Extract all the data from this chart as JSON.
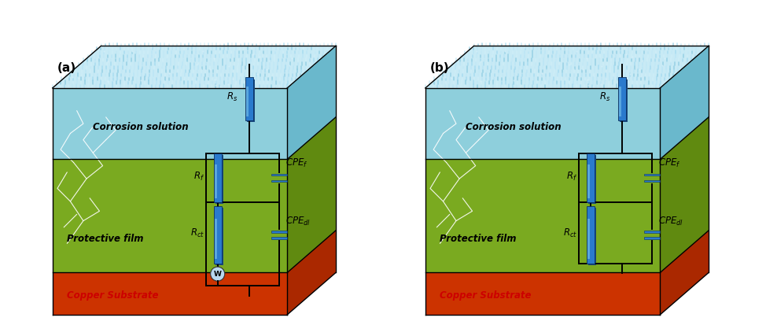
{
  "fig_width": 9.74,
  "fig_height": 4.13,
  "dpi": 100,
  "bg_color": "#ffffff",
  "panel_a": {
    "label": "(a)",
    "has_warburg": true,
    "circuit_labels": {
      "Rs": "$R_s$",
      "Rf": "$R_f$",
      "Rct": "$R_{ct}$",
      "CPEf": "$CPE_f$",
      "CPEdl": "$CPE_{dl}$",
      "W": "W"
    }
  },
  "panel_b": {
    "label": "(b)",
    "has_warburg": false,
    "circuit_labels": {
      "Rs": "$R_s$",
      "Rf": "$R_f$",
      "Rct": "$R_{ct}$",
      "CPEf": "$CPE_f$",
      "CPEdl": "$CPE_{dl}$"
    }
  },
  "sol_top_color": "#c8eaf5",
  "sol_front_color": "#8ecfdc",
  "sol_right_color": "#6ab8cc",
  "film_top_color": "#9dc43a",
  "film_front_color": "#7aaa20",
  "film_right_color": "#608a10",
  "sub_top_color": "#b85000",
  "sub_front_color": "#cc3300",
  "sub_right_color": "#aa2800",
  "resistor_color": "#2a7acd",
  "resistor_shadow": "#1a4a80",
  "resistor_highlight": "#80ccee",
  "cpe_color": "#2a7acd",
  "line_color": "#000000",
  "line_width": 1.4,
  "crack_color": "#ffffff",
  "text_solution": "#000000",
  "text_film": "#000000",
  "text_substrate": "#cc0000"
}
